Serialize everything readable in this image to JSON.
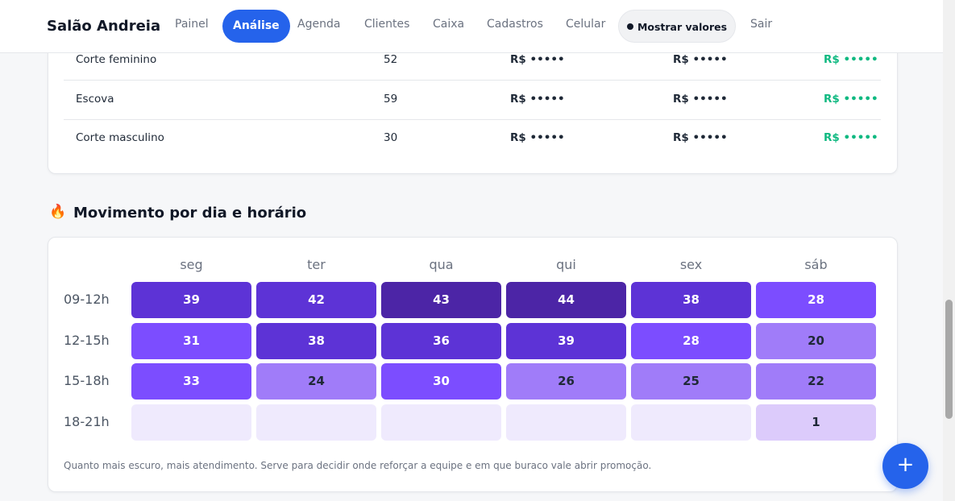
{
  "nav": {
    "brand": "Salão Andreia",
    "items": [
      "Painel",
      "Análise",
      "Agenda",
      "Clientes",
      "Caixa",
      "Cadastros",
      "Celular"
    ],
    "active": 1,
    "toggle": "Mostrar valores",
    "logout": "Sair"
  },
  "services": {
    "rows": [
      [
        "Corte feminino",
        52,
        "R$ •••••",
        "R$ •••••",
        "R$ •••••"
      ],
      [
        "Escova",
        59,
        "R$ •••••",
        "R$ •••••",
        "R$ •••••"
      ],
      [
        "Corte masculino",
        30,
        "R$ •••••",
        "R$ •••••",
        "R$ •••••"
      ]
    ]
  },
  "heatmap": {
    "icon": "🔥",
    "title": "Movimento por dia e horário",
    "days": [
      "seg",
      "ter",
      "qua",
      "qui",
      "sex",
      "sáb"
    ],
    "slots": [
      "09-12h",
      "12-15h",
      "15-18h",
      "18-21h"
    ],
    "values": [
      [
        39,
        42,
        43,
        44,
        38,
        28
      ],
      [
        31,
        38,
        36,
        39,
        28,
        20
      ],
      [
        33,
        24,
        30,
        26,
        25,
        22
      ],
      [
        null,
        null,
        null,
        null,
        null,
        1
      ]
    ],
    "note": "Quanto mais escuro, mais atendimento. Serve para decidir onde reforçar a equipe e em que buraco vale abrir promoção."
  },
  "fab": "+"
}
